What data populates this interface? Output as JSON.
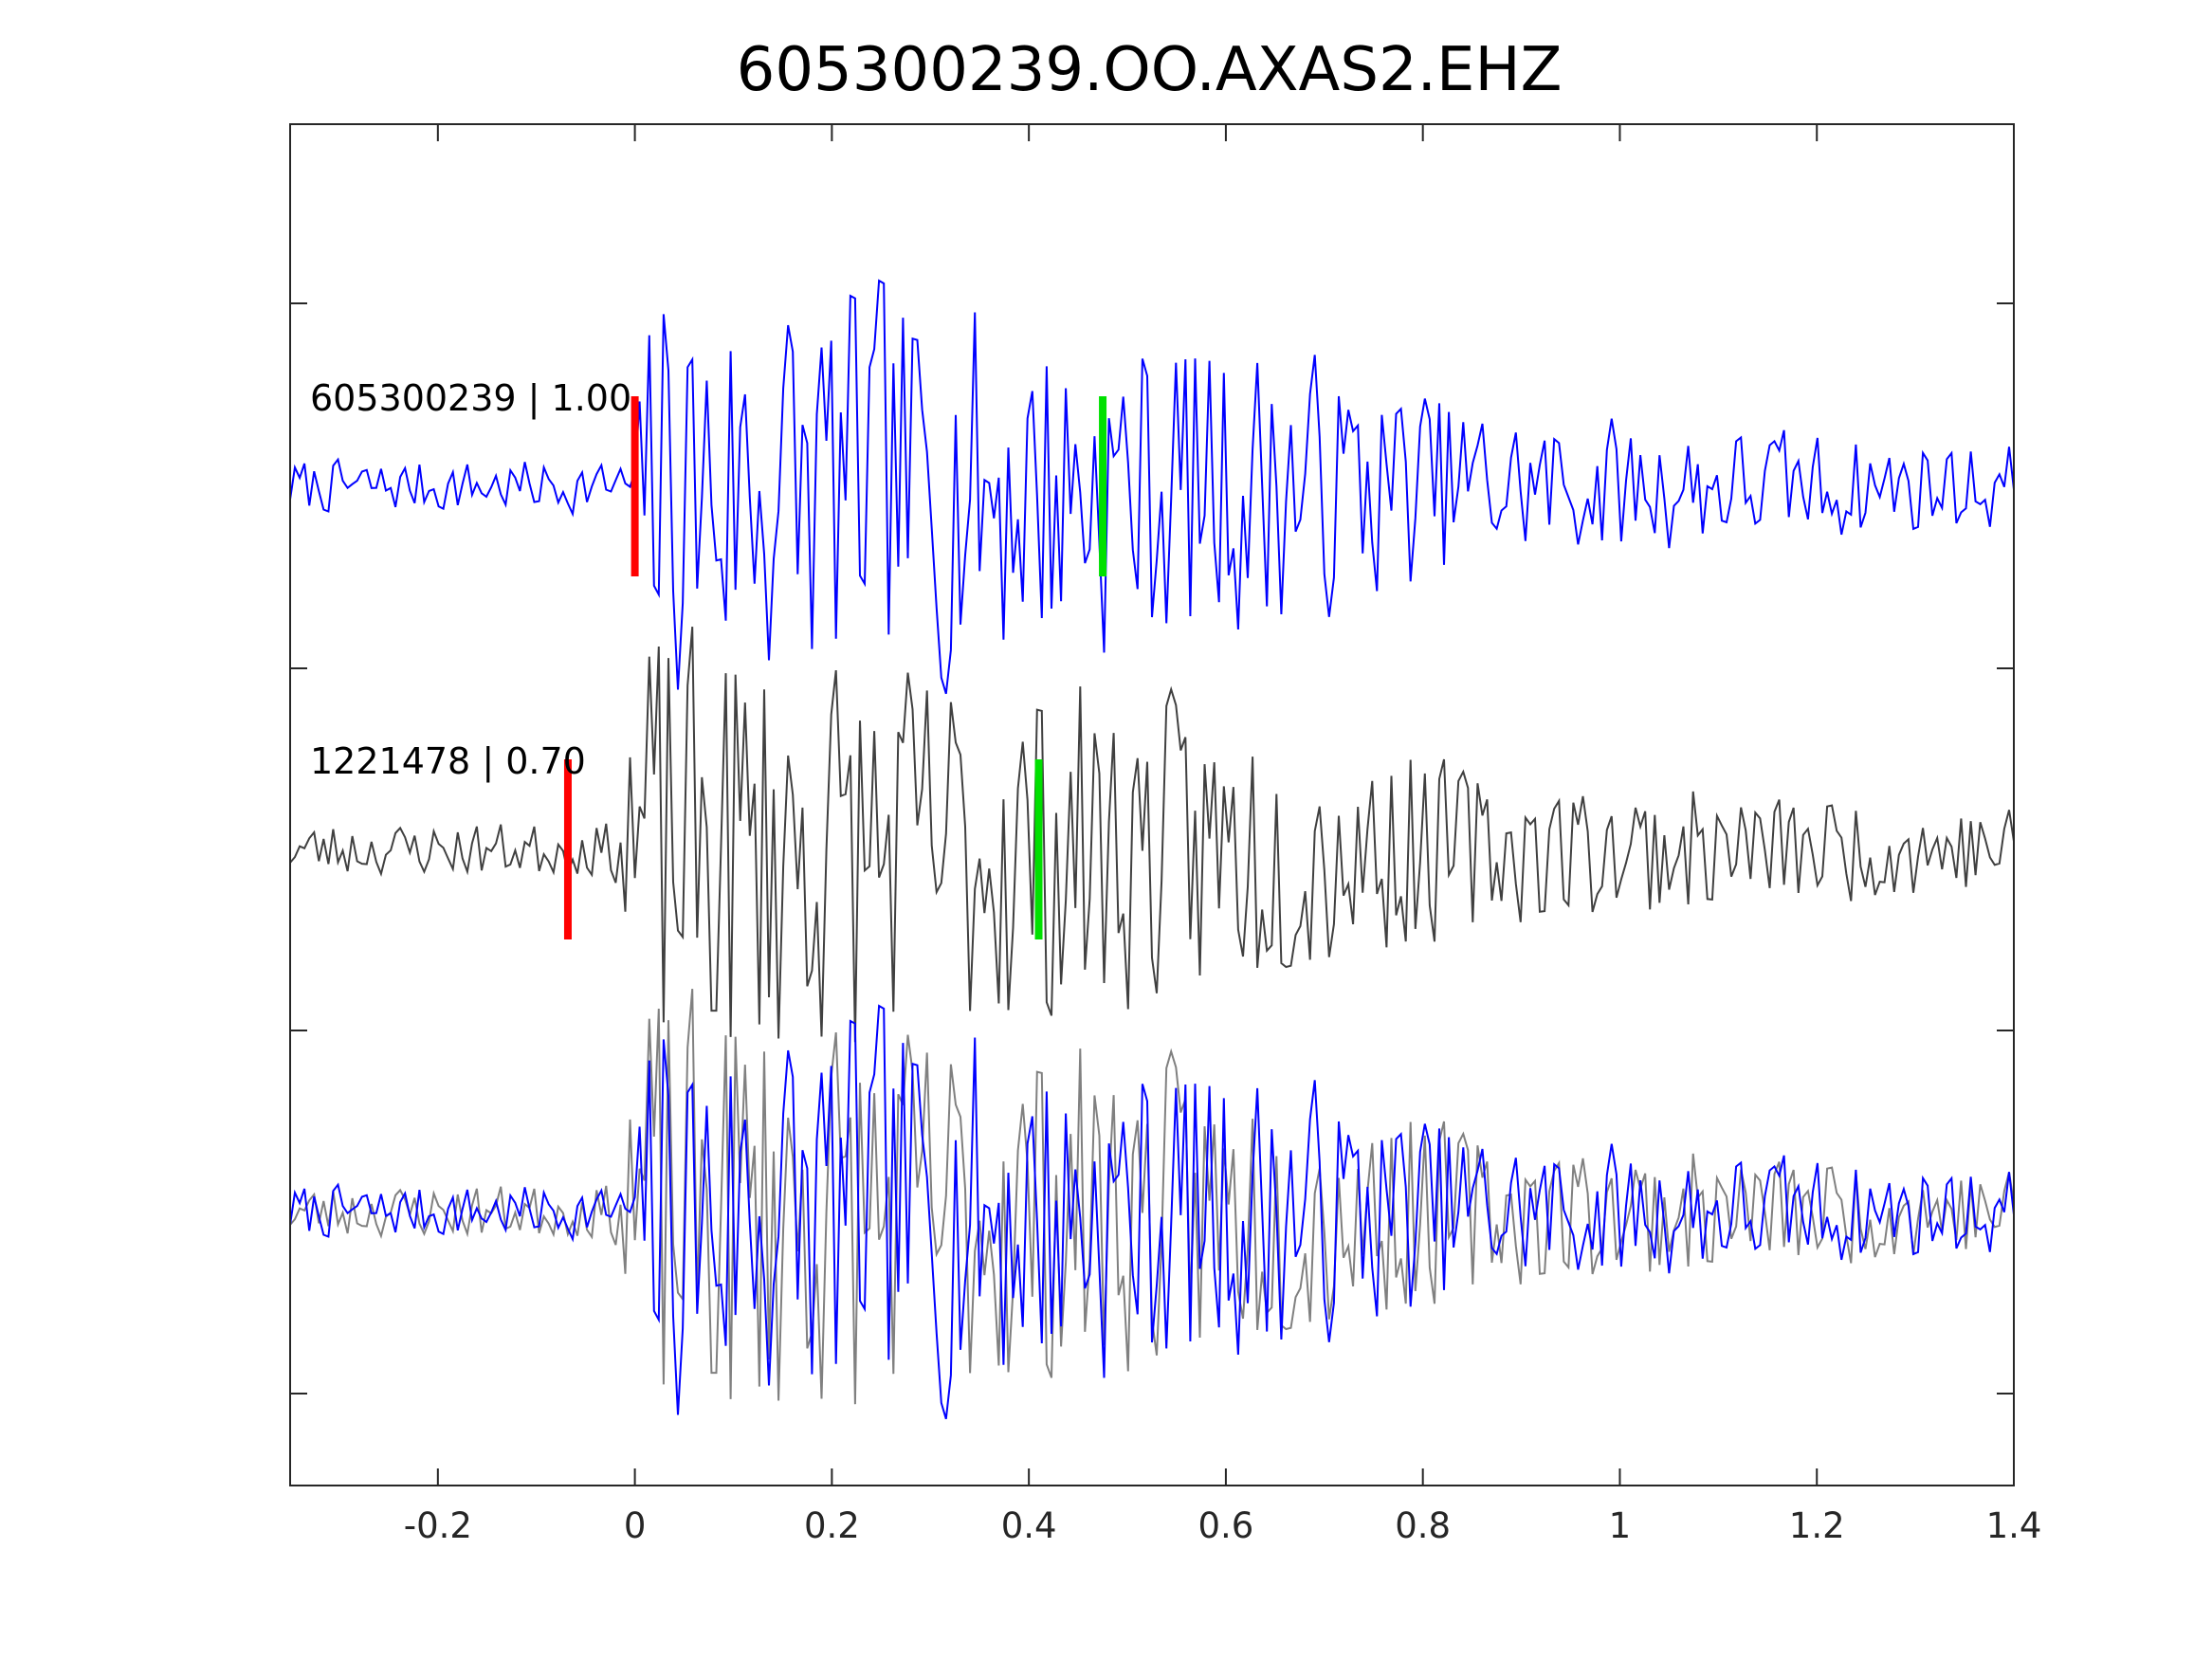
{
  "chart_data": {
    "type": "line",
    "title": "605300239.OO.AXAS2.EHZ",
    "xlabel": "",
    "ylabel": "",
    "xlim": [
      -0.35,
      1.4
    ],
    "xticks": [
      -0.2,
      0,
      0.2,
      0.4,
      0.6,
      0.8,
      1,
      1.2,
      1.4
    ],
    "xtick_labels": [
      "-0.2",
      "0",
      "0.2",
      "0.4",
      "0.6",
      "0.8",
      "1",
      "1.2",
      "1.4"
    ],
    "grid": false,
    "legend": "none",
    "traces": [
      {
        "label": "605300239 | 1.00",
        "color": "#0000ff",
        "offset_rank": 0,
        "picks": [
          {
            "phase": "P",
            "time": 0.0,
            "color": "#ff0000"
          },
          {
            "phase": "S",
            "time": 0.475,
            "color": "#00e000"
          }
        ]
      },
      {
        "label": "1221478 | 0.70",
        "color": "#404040",
        "offset_rank": 1,
        "picks": [
          {
            "phase": "P",
            "time": -0.068,
            "color": "#ff0000"
          },
          {
            "phase": "S",
            "time": 0.41,
            "color": "#00e000"
          }
        ]
      },
      {
        "label": "",
        "type": "overlay",
        "offset_rank": 2,
        "colors": [
          "#808080",
          "#0000ff"
        ]
      }
    ]
  }
}
